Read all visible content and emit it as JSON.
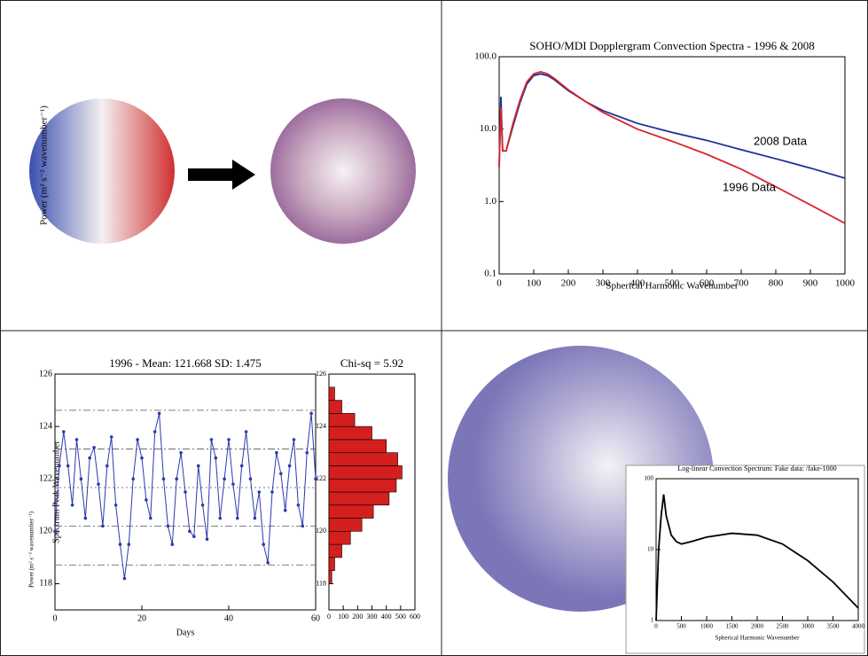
{
  "chart_data": [
    {
      "type": "line",
      "title": "SOHO/MDI Dopplergram Convection Spectra - 1996 & 2008",
      "xlabel": "Spherical Harmonic Wavenumber",
      "ylabel": "Power (m² s⁻² wavenumber⁻¹)",
      "ylog": true,
      "x": [
        0,
        5,
        10,
        20,
        40,
        60,
        80,
        100,
        120,
        140,
        160,
        200,
        250,
        300,
        400,
        500,
        600,
        700,
        800,
        900,
        1000
      ],
      "series": [
        {
          "name": "2008 Data",
          "color": "#1f2f9a",
          "values": [
            3,
            28,
            5,
            5,
            11,
            23,
            42,
            55,
            58,
            55,
            48,
            34,
            24,
            18,
            12,
            9,
            7,
            5.2,
            3.9,
            2.9,
            2.1
          ]
        },
        {
          "name": "1996 Data",
          "color": "#d8262b",
          "values": [
            3,
            20,
            5,
            5,
            12,
            25,
            45,
            58,
            62,
            58,
            50,
            35,
            24,
            17,
            10,
            6.8,
            4.5,
            2.8,
            1.6,
            0.9,
            0.5
          ]
        }
      ],
      "xlim": [
        0,
        1000
      ],
      "xticks": [
        0,
        100,
        200,
        300,
        400,
        500,
        600,
        700,
        800,
        900,
        1000
      ],
      "ylim": [
        0.1,
        100
      ],
      "yticks": [
        0.1,
        {
          "value": 1,
          "label": "1.0"
        },
        {
          "value": 10,
          "label": "10.0"
        },
        {
          "value": 100,
          "label": "100.0"
        }
      ]
    },
    {
      "type": "line",
      "markers": true,
      "title": "1996  -  Mean: 121.668   SD:  1.475",
      "xlabel": "Days",
      "ylabel": "Spectrum Peak Wavenumber",
      "x": [
        0,
        1,
        2,
        3,
        4,
        5,
        6,
        7,
        8,
        9,
        10,
        11,
        12,
        13,
        14,
        15,
        16,
        17,
        18,
        19,
        20,
        21,
        22,
        23,
        24,
        25,
        26,
        27,
        28,
        29,
        30,
        31,
        32,
        33,
        34,
        35,
        36,
        37,
        38,
        39,
        40,
        41,
        42,
        43,
        44,
        45,
        46,
        47,
        48,
        49,
        50,
        51,
        52,
        53,
        54,
        55,
        56,
        57,
        58,
        59,
        60
      ],
      "series": [
        {
          "color": "#2b3ab0",
          "values": [
            120,
            122.5,
            123.8,
            122.5,
            121,
            123.5,
            122,
            120.5,
            122.8,
            123.2,
            121.8,
            120.2,
            122.5,
            123.6,
            121,
            119.5,
            118.2,
            119.5,
            122,
            123.5,
            122.8,
            121.2,
            120.5,
            123.8,
            124.5,
            122,
            120.2,
            119.5,
            122,
            123,
            121.5,
            120,
            119.8,
            122.5,
            121,
            119.7,
            123.5,
            122.8,
            120.5,
            122,
            123.5,
            121.8,
            120.5,
            122.5,
            123.8,
            122,
            120.5,
            121.5,
            119.5,
            118.8,
            121.5,
            123,
            122.2,
            120.8,
            122.5,
            123.5,
            121,
            120.2,
            123,
            124.5,
            122
          ]
        }
      ],
      "hlines": [
        124.618,
        123.143,
        121.668,
        120.193,
        118.718
      ],
      "xlim": [
        0,
        60
      ],
      "xticks": [
        0,
        20,
        40,
        60
      ],
      "ylim": [
        117,
        126
      ],
      "yticks": [
        118,
        120,
        122,
        124,
        126
      ]
    },
    {
      "type": "histogram",
      "title": "Chi-sq = 5.92",
      "color": "#d41f1f",
      "bins": [
        118,
        118.5,
        119,
        119.5,
        120,
        120.5,
        121,
        121.5,
        122,
        122.5,
        123,
        123.5,
        124,
        124.5,
        125,
        125.5
      ],
      "values": [
        20,
        40,
        90,
        150,
        230,
        310,
        420,
        470,
        510,
        480,
        400,
        300,
        180,
        90,
        40
      ],
      "xlim": [
        0,
        600
      ],
      "xticks": [
        0,
        100,
        200,
        300,
        400,
        500,
        600
      ],
      "ylim": [
        117,
        126
      ],
      "yticks": [
        118,
        120,
        122,
        124,
        126
      ]
    },
    {
      "type": "line",
      "title": "Log-linear Convection Spectrum: Fake data: /fake-1000",
      "xlabel": "Spherical Harmonic Wavenumber",
      "ylabel": "Power (m² s⁻² wavenumber⁻¹)",
      "ylog": true,
      "x": [
        0,
        50,
        100,
        150,
        200,
        300,
        400,
        500,
        700,
        1000,
        1500,
        2000,
        2500,
        3000,
        3500,
        4000
      ],
      "series": [
        {
          "color": "#000000",
          "values": [
            1,
            10,
            30,
            60,
            30,
            16,
            13,
            12,
            13,
            15,
            17,
            16,
            12,
            7,
            3.5,
            1.5
          ]
        }
      ],
      "xlim": [
        0,
        4000
      ],
      "xticks": [
        0,
        500,
        1000,
        1500,
        2000,
        2500,
        3000,
        3500,
        4000
      ],
      "ylim": [
        1,
        100
      ],
      "yticks": [
        1,
        10,
        100
      ]
    }
  ]
}
